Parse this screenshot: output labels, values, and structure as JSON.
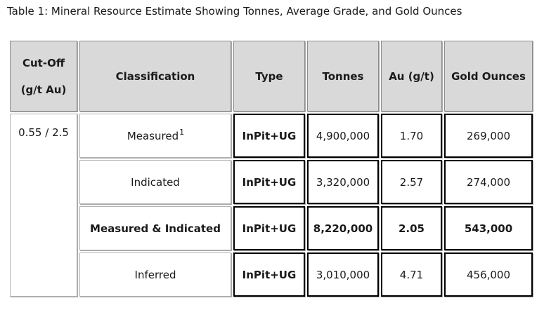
{
  "title": "Table 1: Mineral Resource Estimate Showing Tonnes, Average Grade, and Gold Ounces",
  "table": {
    "headers": {
      "cutoff_line1": "Cut-Off",
      "cutoff_line2": "(g/t Au)",
      "classification": "Classification",
      "type": "Type",
      "tonnes": "Tonnes",
      "au": "Au (g/t)",
      "gold_ounces": "Gold Ounces"
    },
    "cutoff_value": "0.55 / 2.5",
    "rows": [
      {
        "classification": "Measured",
        "sup": "1",
        "type": "InPit+UG",
        "tonnes": "4,900,000",
        "au": "1.70",
        "gold_ounces": "269,000"
      },
      {
        "classification": "Indicated",
        "type": "InPit+UG",
        "tonnes": "3,320,000",
        "au": "2.57",
        "gold_ounces": "274,000"
      },
      {
        "classification": "Measured & Indicated",
        "type": "InPit+UG",
        "tonnes": "8,220,000",
        "au": "2.05",
        "gold_ounces": "543,000"
      },
      {
        "classification": "Inferred",
        "type": "InPit+UG",
        "tonnes": "3,010,000",
        "au": "4.71",
        "gold_ounces": "456,000"
      }
    ]
  },
  "colors": {
    "header_bg": "#d9d9d9",
    "light_border": "#b2b2b2",
    "dark_border": "#000000",
    "text": "#1a1a1a"
  }
}
